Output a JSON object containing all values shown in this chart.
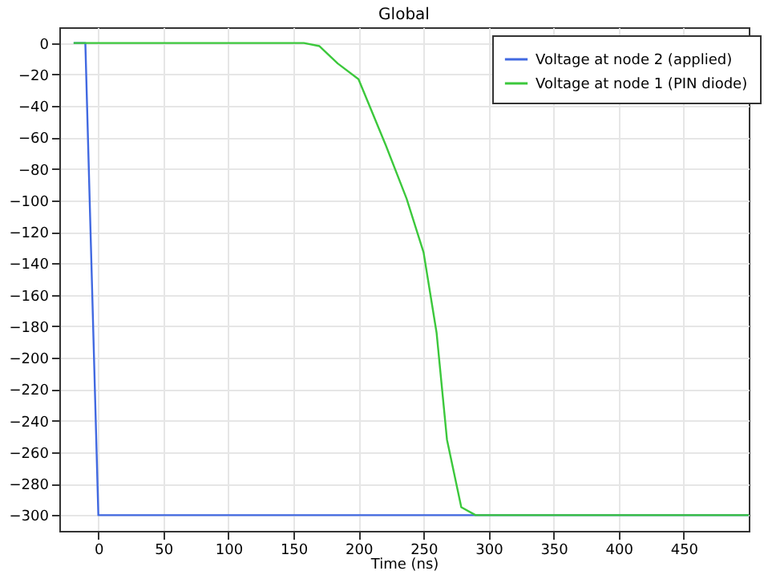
{
  "chart_data": {
    "type": "line",
    "title": "Global",
    "xlabel": "Time (ns)",
    "xlim": [
      -30,
      500
    ],
    "ylim": [
      -310,
      10
    ],
    "xticks": [
      0,
      50,
      100,
      150,
      200,
      250,
      300,
      350,
      400,
      450
    ],
    "yticks": [
      0,
      -20,
      -40,
      -60,
      -80,
      -100,
      -120,
      -140,
      -160,
      -180,
      -200,
      -220,
      -240,
      -260,
      -280,
      -300
    ],
    "grid": true,
    "legend": "top right",
    "series": [
      {
        "name": "Voltage at node 2 (applied)",
        "color": "#4169e1",
        "x": [
          -19,
          -10,
          0,
          500
        ],
        "values": [
          0,
          0,
          -300,
          -300
        ]
      },
      {
        "name": "Voltage at node 1 (PIN diode)",
        "color": "#3cc83c",
        "x": [
          -19,
          158,
          170,
          184,
          200,
          221,
          237,
          250,
          260,
          268,
          279,
          290,
          500
        ],
        "values": [
          0,
          0,
          -2,
          -13,
          -23,
          -65,
          -99,
          -133,
          -184,
          -252,
          -295,
          -300,
          -300
        ]
      }
    ]
  }
}
